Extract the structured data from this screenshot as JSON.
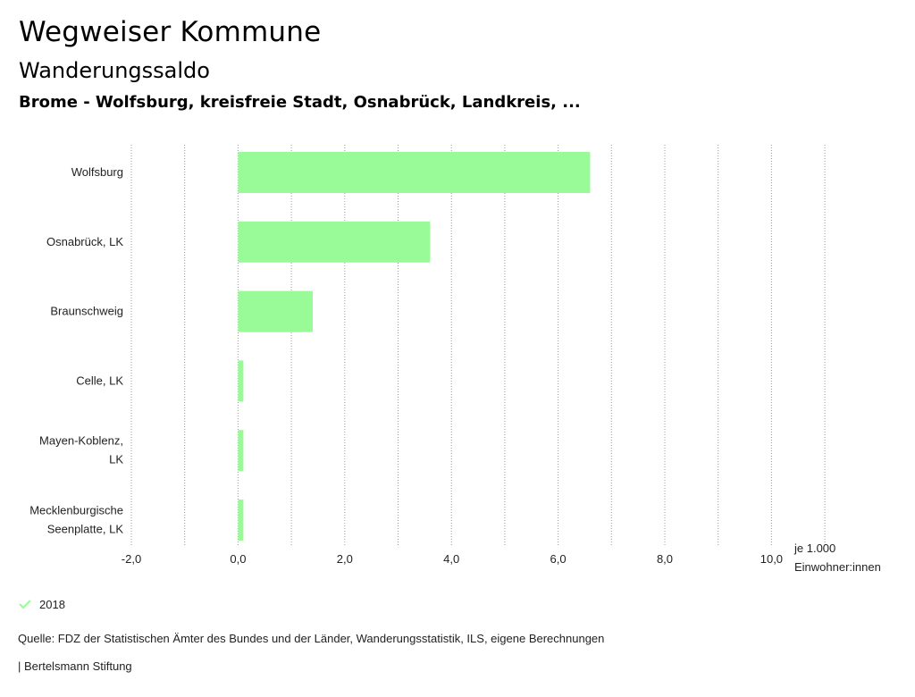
{
  "header": {
    "title": "Wegweiser Kommune",
    "subtitle": "Wanderungssaldo",
    "regions": "Brome - Wolfsburg, kreisfreie Stadt, Osnabrück, Landkreis, ..."
  },
  "chart_data": {
    "type": "bar",
    "orientation": "horizontal",
    "categories": [
      [
        "Wolfsburg"
      ],
      [
        "Osnabrück, LK"
      ],
      [
        "Braunschweig"
      ],
      [
        "Celle, LK"
      ],
      [
        "Mayen-Koblenz,",
        "LK"
      ],
      [
        "Mecklenburgische",
        "Seenplatte, LK"
      ]
    ],
    "series": [
      {
        "name": "2018",
        "color": "#98fb98",
        "values": [
          6.6,
          3.6,
          1.4,
          0.1,
          0.1,
          0.1
        ]
      }
    ],
    "xlim": [
      -2,
      11
    ],
    "xticks": [
      -2,
      0,
      2,
      4,
      6,
      8,
      10
    ],
    "xtick_labels": [
      "-2,0",
      "0,0",
      "2,0",
      "4,0",
      "6,0",
      "8,0",
      "10,0"
    ],
    "unit_label": [
      "je 1.000",
      "Einwohner:innen"
    ],
    "grid": "vertical dotted"
  },
  "legend": {
    "label": "2018",
    "color": "#98fb98"
  },
  "footer": {
    "source": "Quelle: FDZ der Statistischen Ämter des Bundes und der Länder, Wanderungsstatistik, ILS, eigene Berechnungen",
    "credit": "| Bertelsmann Stiftung"
  }
}
